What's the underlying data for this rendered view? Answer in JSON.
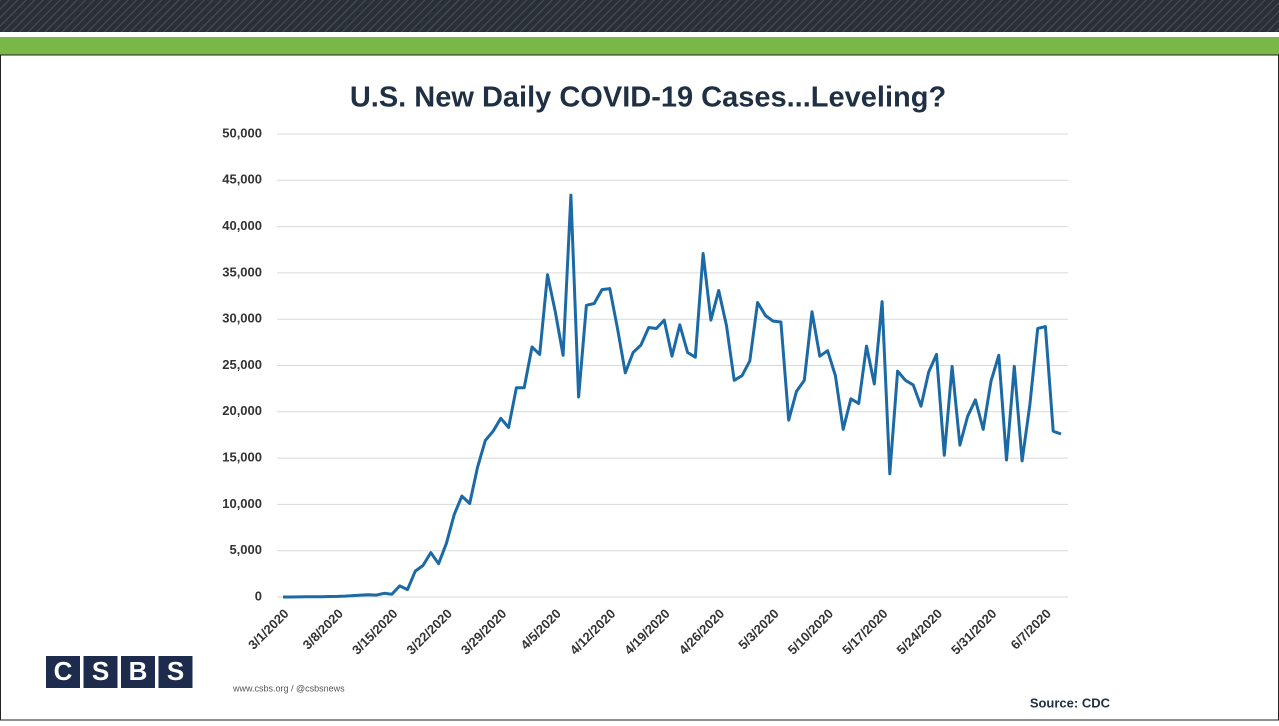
{
  "chart_data": {
    "type": "line",
    "title": "U.S. New Daily COVID-19 Cases...Leveling?",
    "categories": [
      "3/1/2020",
      null,
      null,
      null,
      null,
      null,
      null,
      "3/8/2020",
      null,
      null,
      null,
      null,
      null,
      null,
      "3/15/2020",
      null,
      null,
      null,
      null,
      null,
      null,
      "3/22/2020",
      null,
      null,
      null,
      null,
      null,
      null,
      "3/29/2020",
      null,
      null,
      null,
      null,
      null,
      null,
      "4/5/2020",
      null,
      null,
      null,
      null,
      null,
      null,
      "4/12/2020",
      null,
      null,
      null,
      null,
      null,
      null,
      "4/19/2020",
      null,
      null,
      null,
      null,
      null,
      null,
      "4/26/2020",
      null,
      null,
      null,
      null,
      null,
      null,
      "5/3/2020",
      null,
      null,
      null,
      null,
      null,
      null,
      "5/10/2020",
      null,
      null,
      null,
      null,
      null,
      null,
      "5/17/2020",
      null,
      null,
      null,
      null,
      null,
      null,
      "5/24/2020",
      null,
      null,
      null,
      null,
      null,
      null,
      "5/31/2020",
      null,
      null,
      null,
      null,
      null,
      null,
      "6/7/2020",
      null,
      null
    ],
    "values": [
      0,
      0,
      10,
      20,
      20,
      30,
      50,
      60,
      100,
      150,
      200,
      250,
      200,
      400,
      300,
      1200,
      800,
      2800,
      3400,
      4800,
      3600,
      5800,
      8900,
      10900,
      10100,
      14000,
      16900,
      17900,
      19300,
      18300,
      22600,
      22600,
      27000,
      26200,
      34800,
      30800,
      26100,
      43400,
      21600,
      31500,
      31700,
      33200,
      33300,
      29000,
      24200,
      26400,
      27200,
      29100,
      29000,
      29900,
      26000,
      29400,
      26400,
      25900,
      37100,
      29900,
      33100,
      29300,
      23400,
      23900,
      25500,
      31800,
      30400,
      29800,
      29700,
      19100,
      22200,
      23400,
      30800,
      26000,
      26600,
      23900,
      18100,
      21400,
      20900,
      27100,
      23000,
      31900,
      13300,
      24400,
      23400,
      22900,
      20600,
      24300,
      26200,
      15300,
      24900,
      16400,
      19500,
      21300,
      18100,
      23300,
      26100,
      14800,
      24900,
      14700,
      20800,
      29000,
      29200,
      17900,
      17600
    ],
    "color": "#1b6aa5",
    "ylim": [
      0,
      50000
    ],
    "yticks": [
      0,
      {
        "value": 5000,
        "label": "5,000"
      },
      {
        "value": 10000,
        "label": "10,000"
      },
      {
        "value": 15000,
        "label": "15,000"
      },
      {
        "value": 20000,
        "label": "20,000"
      },
      {
        "value": 25000,
        "label": "25,000"
      },
      {
        "value": 30000,
        "label": "30,000"
      },
      {
        "value": 35000,
        "label": "35,000"
      },
      {
        "value": 40000,
        "label": "40,000"
      },
      {
        "value": 45000,
        "label": "45,000"
      },
      {
        "value": 50000,
        "label": "50,000"
      }
    ],
    "grid": true
  },
  "source": "Source: CDC",
  "logo": [
    "C",
    "S",
    "B",
    "S"
  ],
  "website": "www.csbs.org / @csbsnews"
}
